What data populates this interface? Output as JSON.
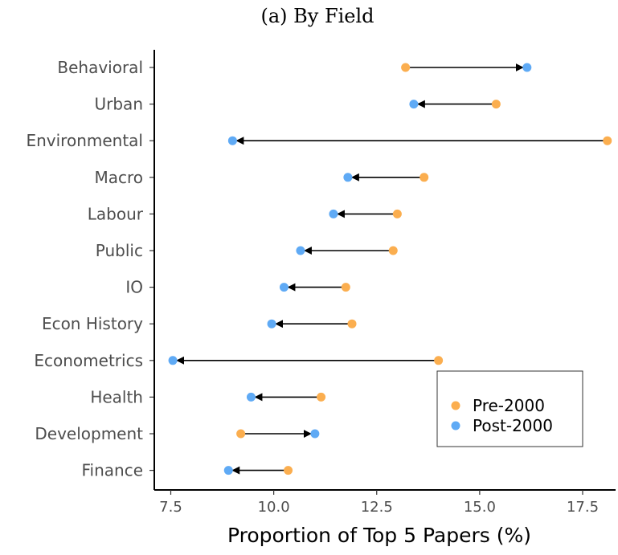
{
  "chart_data": {
    "type": "dumbbell",
    "title": "(a) By Field",
    "xlabel": "Proportion of Top 5 Papers (%)",
    "ylabel": "",
    "xlim": [
      7.1,
      18.3
    ],
    "xticks": [
      7.5,
      10.0,
      12.5,
      15.0,
      17.5
    ],
    "xtick_labels": [
      "7.5",
      "10.0",
      "12.5",
      "15.0",
      "17.5"
    ],
    "categories": [
      "Behavioral",
      "Urban",
      "Environmental",
      "Macro",
      "Labour",
      "Public",
      "IO",
      "Econ History",
      "Econometrics",
      "Health",
      "Development",
      "Finance"
    ],
    "series": [
      {
        "name": "Pre-2000",
        "color": "#fbae4f",
        "values": [
          13.2,
          15.4,
          18.1,
          13.65,
          13.0,
          12.9,
          11.75,
          11.9,
          14.0,
          11.15,
          9.2,
          10.35
        ]
      },
      {
        "name": "Post-2000",
        "color": "#5faaf5",
        "values": [
          16.15,
          13.4,
          9.0,
          11.8,
          11.45,
          10.65,
          10.25,
          9.95,
          7.55,
          9.45,
          11.0,
          8.9
        ]
      }
    ],
    "arrows": "pre-to-post",
    "legend": {
      "placement": "bottom-right",
      "entries": [
        "Pre-2000",
        "Post-2000"
      ]
    },
    "grid": false
  }
}
